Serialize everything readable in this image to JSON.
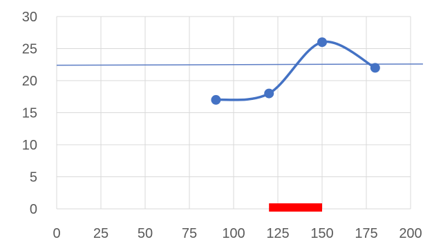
{
  "chart_data": {
    "type": "scatter",
    "title": "",
    "xlabel": "",
    "ylabel": "",
    "xlim": [
      0,
      200
    ],
    "ylim": [
      0,
      30
    ],
    "x_ticks": [
      0,
      25,
      50,
      75,
      100,
      125,
      150,
      175,
      200
    ],
    "y_ticks": [
      0,
      5,
      10,
      15,
      20,
      25,
      30
    ],
    "grid": true,
    "legend": "none",
    "series": [
      {
        "style": "smooth-line-with-markers",
        "color": "#4472c4",
        "x": [
          90,
          120,
          150,
          180
        ],
        "y": [
          17,
          18,
          26,
          22
        ]
      }
    ],
    "reference_line": {
      "type": "line",
      "color": "#5b7cc4",
      "x": [
        0,
        207
      ],
      "y": [
        22.4,
        22.6
      ]
    },
    "highlight_band": {
      "type": "bar",
      "color": "#ff0000",
      "x_range": [
        120,
        150
      ],
      "y": 0
    }
  }
}
